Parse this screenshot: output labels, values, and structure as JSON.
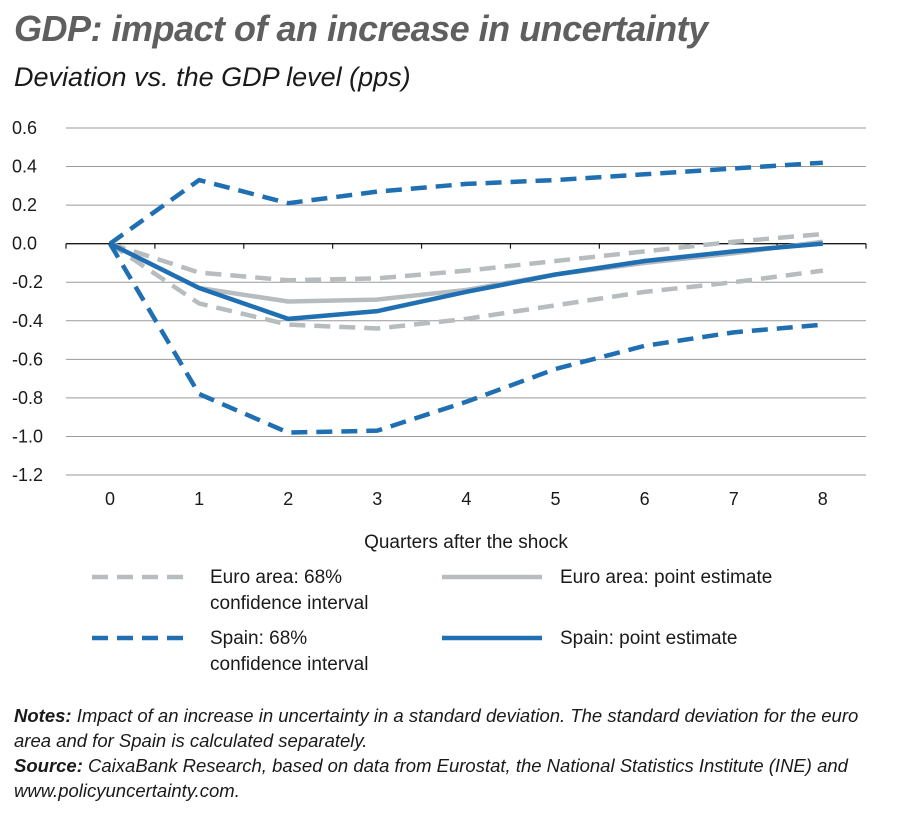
{
  "title": "GDP: impact of an increase in uncertainty",
  "subtitle": "Deviation vs. the GDP level (pps)",
  "notes": {
    "notes_label": "Notes:",
    "notes_text": "Impact of an increase in uncertainty in a standard deviation. The standard deviation for the euro area and for Spain is calculated separately.",
    "source_label": "Source:",
    "source_text": "CaixaBank Research, based on data from Eurostat, the National Statistics Institute (INE) and www.policyuncertainty.com."
  },
  "chart_data": {
    "type": "line",
    "xlabel": "Quarters after the shock",
    "ylabel": "",
    "x": [
      0,
      1,
      2,
      3,
      4,
      5,
      6,
      7,
      8
    ],
    "ylim": [
      -1.2,
      0.6
    ],
    "yticks": [
      "0.6",
      "0.4",
      "0.2",
      "0.0",
      "-0.2",
      "-0.4",
      "-0.6",
      "-0.8",
      "-1.0",
      "-1.2"
    ],
    "ytick_values": [
      0.6,
      0.4,
      0.2,
      0.0,
      -0.2,
      -0.4,
      -0.6,
      -0.8,
      -1.0,
      -1.2
    ],
    "xticks": [
      "0",
      "1",
      "2",
      "3",
      "4",
      "5",
      "6",
      "7",
      "8"
    ],
    "grid": true,
    "legend_position": "bottom",
    "series": [
      {
        "legend_line1": "Euro area: 68%",
        "legend_line2": "confidence interval",
        "color": "#b7bcbf",
        "style": "dashed",
        "values": [
          0,
          -0.15,
          -0.19,
          -0.18,
          -0.14,
          -0.09,
          -0.04,
          0.01,
          0.05
        ]
      },
      {
        "color": "#b7bcbf",
        "style": "dashed",
        "values": [
          0,
          -0.31,
          -0.42,
          -0.44,
          -0.39,
          -0.32,
          -0.25,
          -0.2,
          -0.14
        ]
      },
      {
        "legend_line1": "Euro area: point estimate",
        "legend_line2": "",
        "color": "#b7bcbf",
        "style": "solid",
        "values": [
          0,
          -0.23,
          -0.3,
          -0.29,
          -0.24,
          -0.16,
          -0.1,
          -0.05,
          0.01
        ]
      },
      {
        "legend_line1": "Spain: 68%",
        "legend_line2": "confidence interval",
        "color": "#1f6fb2",
        "style": "dashed",
        "values": [
          0,
          0.33,
          0.21,
          0.27,
          0.31,
          0.33,
          0.36,
          0.39,
          0.42
        ]
      },
      {
        "color": "#1f6fb2",
        "style": "dashed",
        "values": [
          0,
          -0.78,
          -0.98,
          -0.97,
          -0.82,
          -0.65,
          -0.53,
          -0.46,
          -0.42
        ]
      },
      {
        "legend_line1": "Spain: point estimate",
        "legend_line2": "",
        "color": "#1f6fb2",
        "style": "solid",
        "values": [
          0,
          -0.23,
          -0.39,
          -0.35,
          -0.25,
          -0.16,
          -0.09,
          -0.04,
          0.0
        ]
      }
    ]
  }
}
